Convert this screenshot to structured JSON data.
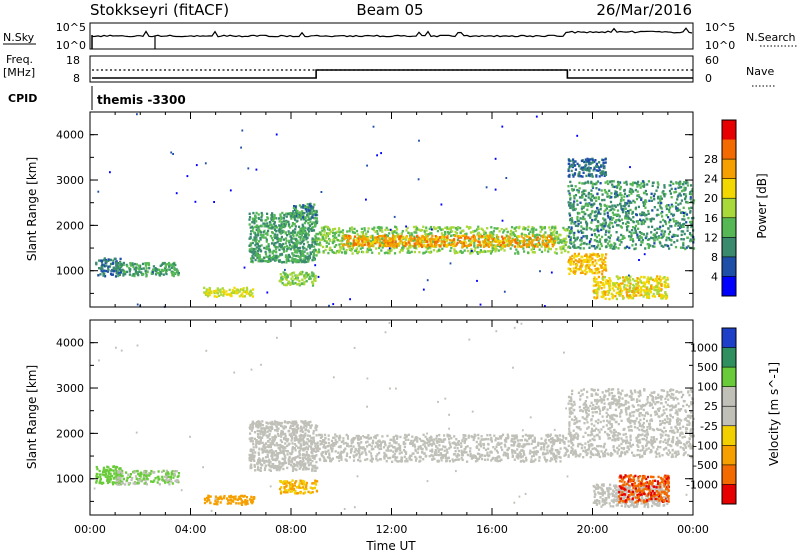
{
  "header": {
    "station": "Stokkseyri (fitACF)",
    "beam": "Beam 05",
    "date": "26/Mar/2016"
  },
  "top_panels": {
    "nsky_label": "N.Sky",
    "nsearch_label": "N.Search",
    "noise_tick_hi": "10^5",
    "noise_tick_lo": "10^0",
    "freq_label_1": "Freq.",
    "freq_label_2": "[MHz]",
    "freq_tick_hi": "18",
    "freq_tick_lo": "8",
    "nave_label": "Nave",
    "nave_tick_hi": "60",
    "nave_tick_lo": "0",
    "cpid_label": "CPID",
    "cpid_value": "themis -3300"
  },
  "chart_data": [
    {
      "type": "heatmap",
      "name": "power",
      "ylabel": "Slant Range [km]",
      "yticks": [
        "1000",
        "2000",
        "3000",
        "4000"
      ],
      "ylim": [
        200,
        4500
      ],
      "xlim": [
        0,
        24
      ],
      "colorbar_label": "Power [dB]",
      "colorbar_ticks": [
        "4",
        "8",
        "12",
        "16",
        "20",
        "24",
        "28"
      ],
      "colorbar_colors": [
        "#0000ff",
        "#1e4fa8",
        "#3a8a6e",
        "#55b855",
        "#a8d83a",
        "#f2d800",
        "#f6a000",
        "#f26a00",
        "#e60000"
      ],
      "echo_regions": [
        {
          "t0": 0.2,
          "t1": 1.2,
          "r0": 900,
          "r1": 1300,
          "value": 6
        },
        {
          "t0": 1.0,
          "t1": 3.5,
          "r0": 900,
          "r1": 1200,
          "value": 10
        },
        {
          "t0": 4.5,
          "t1": 6.5,
          "r0": 450,
          "r1": 650,
          "value": 18
        },
        {
          "t0": 6.3,
          "t1": 9.0,
          "r0": 1200,
          "r1": 2300,
          "value": 10
        },
        {
          "t0": 7.5,
          "t1": 9.0,
          "r0": 700,
          "r1": 1000,
          "value": 14
        },
        {
          "t0": 8.0,
          "t1": 9.0,
          "r0": 2200,
          "r1": 2500,
          "value": 8
        },
        {
          "t0": 9.0,
          "t1": 19.0,
          "r0": 1400,
          "r1": 2000,
          "value": 14
        },
        {
          "t0": 10.0,
          "t1": 18.5,
          "r0": 1550,
          "r1": 1800,
          "value": 24
        },
        {
          "t0": 19.0,
          "t1": 20.5,
          "r0": 950,
          "r1": 1400,
          "value": 22
        },
        {
          "t0": 19.0,
          "t1": 24.0,
          "r0": 1500,
          "r1": 3000,
          "value": 9
        },
        {
          "t0": 20.0,
          "t1": 23.0,
          "r0": 400,
          "r1": 900,
          "value": 20
        },
        {
          "t0": 19.0,
          "t1": 20.5,
          "r0": 3100,
          "r1": 3500,
          "value": 6
        }
      ]
    },
    {
      "type": "heatmap",
      "name": "velocity",
      "ylabel": "Slant Range [km]",
      "yticks": [
        "1000",
        "2000",
        "3000",
        "4000"
      ],
      "ylim": [
        200,
        4500
      ],
      "xlim": [
        0,
        24
      ],
      "xlabel": "Time UT",
      "xticks": [
        "00:00",
        "04:00",
        "08:00",
        "12:00",
        "16:00",
        "20:00",
        "00:00"
      ],
      "colorbar_label": "Velocity [m s^-1]",
      "colorbar_ticks": [
        "1000",
        "500",
        "100",
        "25",
        "-25",
        "-100",
        "-500",
        "-1000"
      ],
      "colorbar_colors": [
        "#1e3fc8",
        "#2f8f5f",
        "#6acb3a",
        "#c0c0b8",
        "#c0c0b8",
        "#f2d000",
        "#f6a000",
        "#f26a00",
        "#e60000"
      ],
      "echo_regions": [
        {
          "t0": 0.2,
          "t1": 1.2,
          "r0": 900,
          "r1": 1300,
          "value": 100
        },
        {
          "t0": 1.0,
          "t1": 3.5,
          "r0": 900,
          "r1": 1200,
          "value": 60
        },
        {
          "t0": 4.5,
          "t1": 6.5,
          "r0": 450,
          "r1": 650,
          "value": -100
        },
        {
          "t0": 6.3,
          "t1": 9.0,
          "r0": 1200,
          "r1": 2300,
          "value": 0
        },
        {
          "t0": 7.5,
          "t1": 9.0,
          "r0": 700,
          "r1": 1000,
          "value": -60
        },
        {
          "t0": 9.0,
          "t1": 19.0,
          "r0": 1400,
          "r1": 2000,
          "value": 0
        },
        {
          "t0": 19.0,
          "t1": 24.0,
          "r0": 1500,
          "r1": 3000,
          "value": 0
        },
        {
          "t0": 20.0,
          "t1": 23.0,
          "r0": 400,
          "r1": 900,
          "value": 0
        },
        {
          "t0": 21.0,
          "t1": 23.0,
          "r0": 500,
          "r1": 1100,
          "value": -700
        }
      ]
    }
  ]
}
